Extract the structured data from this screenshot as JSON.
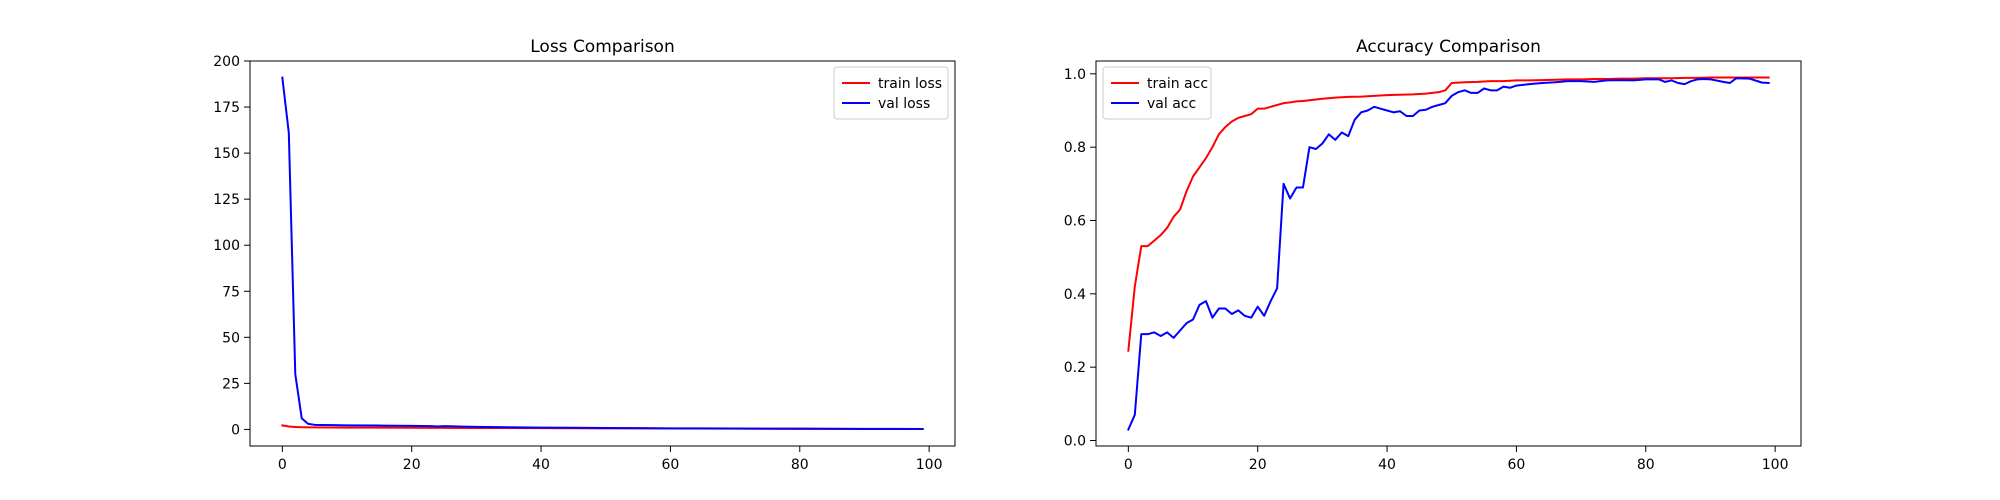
{
  "chart_data": [
    {
      "type": "line",
      "title": "Loss Comparison",
      "xlabel": "",
      "ylabel": "",
      "xlim": [
        -5,
        104
      ],
      "ylim": [
        -9,
        200
      ],
      "xticks": [
        0,
        20,
        40,
        60,
        80,
        100
      ],
      "yticks": [
        0,
        25,
        50,
        75,
        100,
        125,
        150,
        175,
        200
      ],
      "legend": "top-right",
      "grid": false,
      "series": [
        {
          "name": "train loss",
          "color": "#ff0000",
          "x": [
            0,
            1,
            2,
            3,
            5,
            10,
            20,
            30,
            40,
            50,
            60,
            70,
            80,
            90,
            99
          ],
          "y": [
            2.2,
            1.6,
            1.3,
            1.2,
            1.1,
            1.0,
            0.9,
            0.8,
            0.7,
            0.6,
            0.5,
            0.4,
            0.3,
            0.25,
            0.2
          ]
        },
        {
          "name": "val loss",
          "color": "#0000ff",
          "x": [
            0,
            1,
            2,
            3,
            4,
            5,
            6,
            8,
            10,
            15,
            20,
            23,
            24,
            25,
            26,
            28,
            30,
            35,
            40,
            45,
            50,
            55,
            60,
            65,
            70,
            75,
            80,
            85,
            90,
            95,
            99
          ],
          "y": [
            191,
            161,
            30,
            6,
            3,
            2.5,
            2.4,
            2.3,
            2.2,
            2.1,
            1.9,
            1.8,
            1.6,
            1.8,
            1.7,
            1.5,
            1.4,
            1.2,
            1.0,
            0.9,
            0.8,
            0.7,
            0.6,
            0.55,
            0.5,
            0.45,
            0.4,
            0.35,
            0.3,
            0.3,
            0.25
          ]
        }
      ]
    },
    {
      "type": "line",
      "title": "Accuracy Comparison",
      "xlabel": "",
      "ylabel": "",
      "xlim": [
        -5,
        104
      ],
      "ylim": [
        -0.015,
        1.035
      ],
      "xticks": [
        0,
        20,
        40,
        60,
        80,
        100
      ],
      "yticks": [
        0.0,
        0.2,
        0.4,
        0.6,
        0.8,
        1.0
      ],
      "legend": "top-left",
      "grid": false,
      "series": [
        {
          "name": "train acc",
          "color": "#ff0000",
          "x": [
            0,
            1,
            2,
            3,
            4,
            5,
            6,
            7,
            8,
            9,
            10,
            11,
            12,
            13,
            14,
            15,
            16,
            17,
            18,
            19,
            20,
            21,
            22,
            23,
            24,
            25,
            26,
            27,
            28,
            29,
            30,
            32,
            34,
            36,
            38,
            40,
            42,
            44,
            46,
            48,
            49,
            50,
            52,
            54,
            56,
            58,
            60,
            62,
            64,
            66,
            68,
            70,
            72,
            74,
            76,
            78,
            80,
            82,
            84,
            86,
            88,
            90,
            92,
            94,
            96,
            99
          ],
          "y": [
            0.245,
            0.42,
            0.53,
            0.53,
            0.545,
            0.56,
            0.58,
            0.61,
            0.63,
            0.68,
            0.72,
            0.745,
            0.77,
            0.8,
            0.835,
            0.855,
            0.87,
            0.88,
            0.885,
            0.89,
            0.905,
            0.905,
            0.91,
            0.915,
            0.92,
            0.922,
            0.925,
            0.926,
            0.928,
            0.93,
            0.932,
            0.935,
            0.937,
            0.938,
            0.94,
            0.942,
            0.943,
            0.944,
            0.946,
            0.95,
            0.955,
            0.975,
            0.977,
            0.978,
            0.98,
            0.98,
            0.982,
            0.982,
            0.983,
            0.984,
            0.985,
            0.985,
            0.986,
            0.986,
            0.987,
            0.987,
            0.988,
            0.988,
            0.988,
            0.989,
            0.989,
            0.99,
            0.99,
            0.99,
            0.99,
            0.99
          ]
        },
        {
          "name": "val acc",
          "color": "#0000ff",
          "x": [
            0,
            1,
            2,
            3,
            4,
            5,
            6,
            7,
            8,
            9,
            10,
            11,
            12,
            13,
            14,
            15,
            16,
            17,
            18,
            19,
            20,
            21,
            22,
            23,
            24,
            25,
            26,
            27,
            28,
            29,
            30,
            31,
            32,
            33,
            34,
            35,
            36,
            37,
            38,
            39,
            40,
            41,
            42,
            43,
            44,
            45,
            46,
            47,
            48,
            49,
            50,
            51,
            52,
            53,
            54,
            55,
            56,
            57,
            58,
            59,
            60,
            62,
            64,
            66,
            68,
            70,
            72,
            74,
            76,
            78,
            80,
            82,
            83,
            84,
            85,
            86,
            87,
            88,
            89,
            90,
            92,
            93,
            94,
            96,
            98,
            99
          ],
          "y": [
            0.03,
            0.07,
            0.29,
            0.29,
            0.295,
            0.285,
            0.295,
            0.28,
            0.3,
            0.32,
            0.33,
            0.37,
            0.38,
            0.335,
            0.36,
            0.36,
            0.345,
            0.355,
            0.34,
            0.335,
            0.365,
            0.34,
            0.38,
            0.415,
            0.7,
            0.66,
            0.69,
            0.69,
            0.8,
            0.795,
            0.81,
            0.835,
            0.82,
            0.84,
            0.83,
            0.875,
            0.895,
            0.9,
            0.91,
            0.905,
            0.9,
            0.895,
            0.898,
            0.885,
            0.885,
            0.9,
            0.902,
            0.91,
            0.915,
            0.92,
            0.94,
            0.95,
            0.955,
            0.948,
            0.948,
            0.96,
            0.955,
            0.955,
            0.965,
            0.962,
            0.968,
            0.972,
            0.975,
            0.977,
            0.98,
            0.98,
            0.978,
            0.982,
            0.983,
            0.982,
            0.985,
            0.985,
            0.978,
            0.982,
            0.975,
            0.972,
            0.98,
            0.985,
            0.986,
            0.985,
            0.978,
            0.975,
            0.988,
            0.987,
            0.976,
            0.975
          ]
        }
      ]
    }
  ]
}
